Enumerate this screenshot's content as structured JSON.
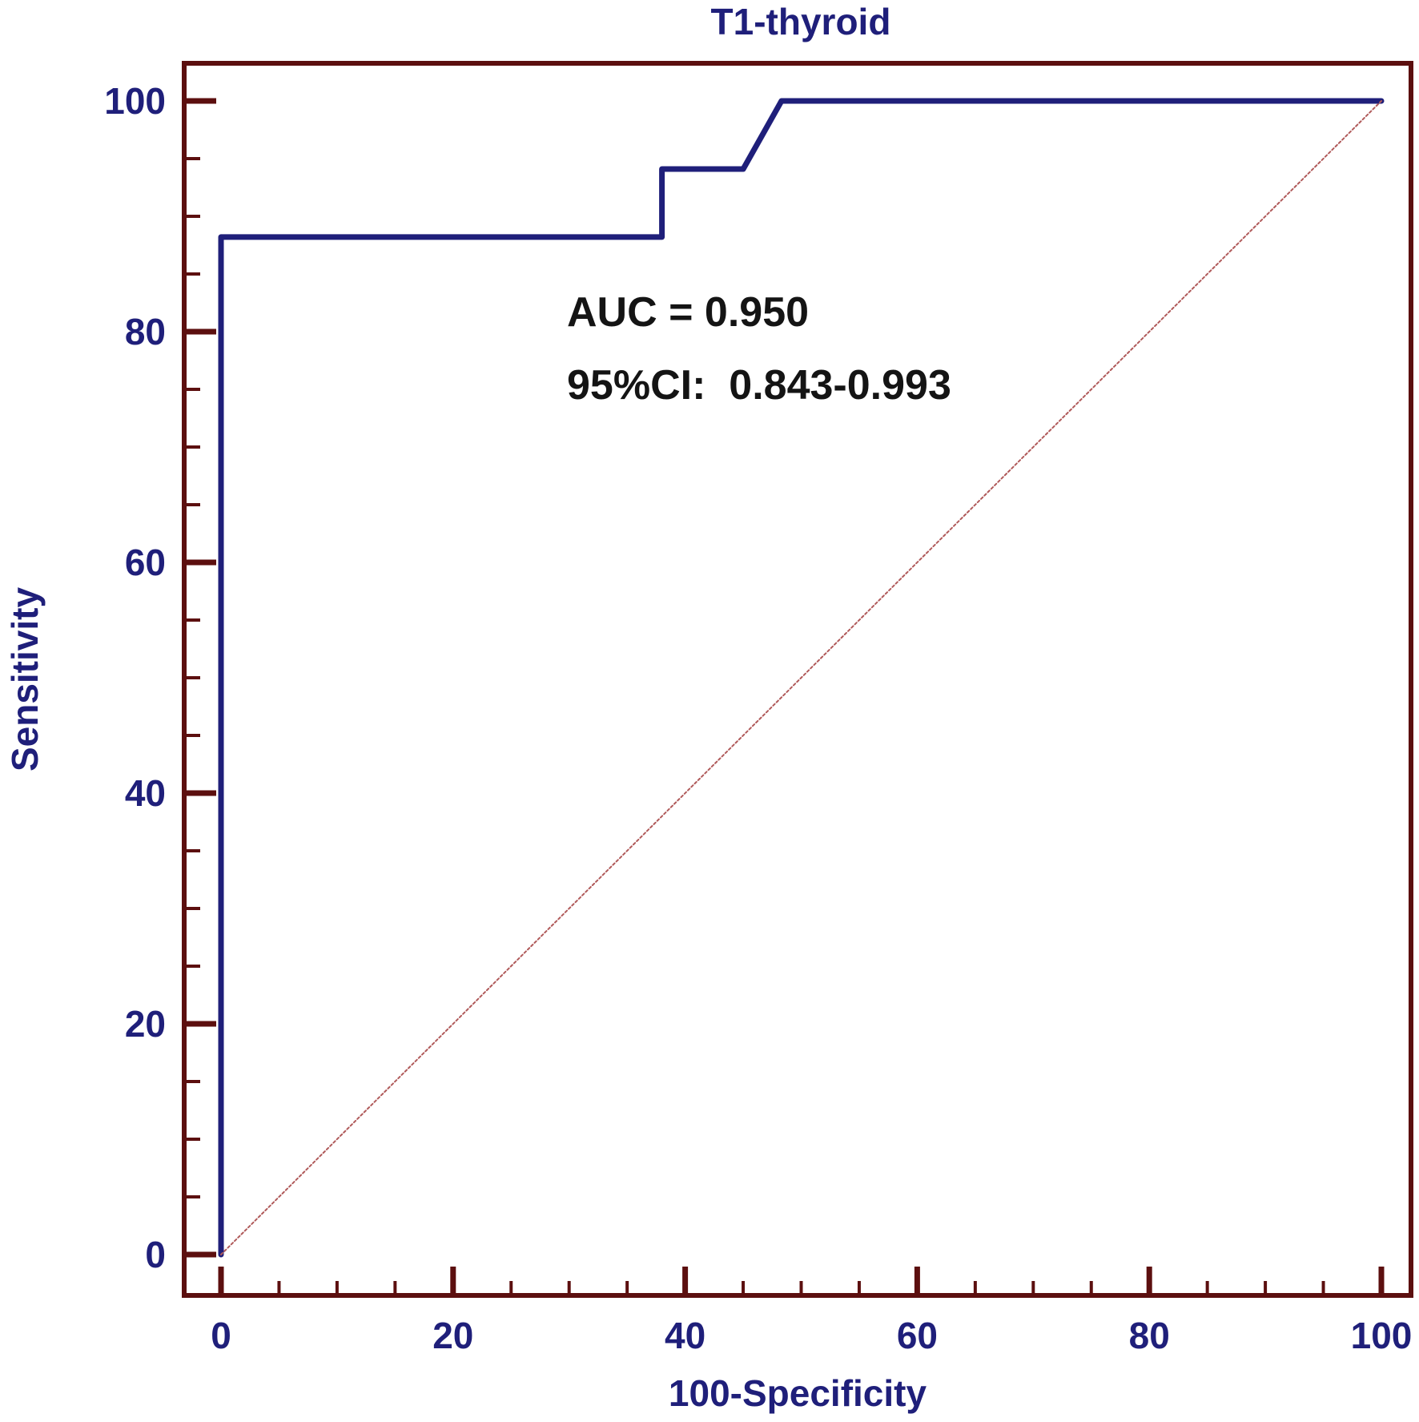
{
  "chart_data": {
    "type": "line",
    "title": "T1-thyroid",
    "xlabel": "100-Specificity",
    "ylabel": "Sensitivity",
    "xlim": [
      0,
      100
    ],
    "ylim": [
      0,
      100
    ],
    "x_ticks": [
      0,
      20,
      40,
      60,
      80,
      100
    ],
    "y_ticks": [
      0,
      20,
      40,
      60,
      80,
      100
    ],
    "x_minor_step": 5,
    "y_minor_step": 5,
    "grid": false,
    "series": [
      {
        "x": [
          0,
          0,
          38,
          38,
          45,
          48.3,
          100
        ],
        "y": [
          0,
          88.2,
          88.2,
          94.1,
          94.1,
          100,
          100
        ],
        "color": "#1f1f7a"
      },
      {
        "x": [
          0,
          100
        ],
        "y": [
          0,
          100
        ],
        "color": "#b05a5a",
        "style": "dotted"
      }
    ],
    "annotations": [
      "AUC = 0.950",
      "95%CI:  0.843-0.993"
    ],
    "frame_color": "#5c0f0f"
  }
}
